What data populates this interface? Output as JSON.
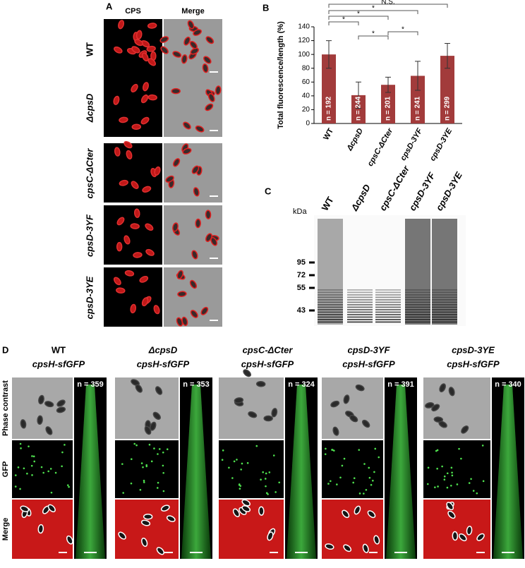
{
  "panel_a": {
    "label": "A",
    "columns": [
      "CPS",
      "Merge"
    ],
    "rows": [
      "WT",
      "ΔcpsD",
      "cpsC-ΔCter",
      "cpsD-3YF",
      "cpsD-3YE"
    ]
  },
  "chart_data": {
    "type": "bar",
    "panel_label": "B",
    "ylabel": "Total fluorescence/length (%)",
    "categories": [
      "WT",
      "ΔcpsD",
      "cpsC-ΔCter",
      "cpsD-3YF",
      "cpsD-3YE"
    ],
    "values": [
      100,
      41,
      56,
      69,
      98
    ],
    "errors": [
      20,
      19,
      11,
      21,
      18
    ],
    "bar_labels": [
      "n = 192",
      "n = 244",
      "n = 201",
      "n = 241",
      "n = 299"
    ],
    "color": "#a23b3b",
    "ylim": [
      0,
      140
    ],
    "yticks": [
      0,
      20,
      40,
      60,
      80,
      100,
      120,
      140
    ],
    "significance": [
      {
        "between": [
          0,
          4
        ],
        "label": "N.S."
      },
      {
        "between": [
          0,
          3
        ],
        "label": "*"
      },
      {
        "between": [
          0,
          2
        ],
        "label": "*"
      },
      {
        "between": [
          0,
          1
        ],
        "label": "*"
      },
      {
        "between": [
          2,
          3
        ],
        "label": "*"
      },
      {
        "between": [
          1,
          2
        ],
        "label": "*"
      }
    ]
  },
  "panel_c": {
    "label": "C",
    "unit": "kDa",
    "lanes": [
      "WT",
      "ΔcpsD",
      "cpsC-ΔCter",
      "cpsD-3YF",
      "cpsD-3YE"
    ],
    "markers": [
      "95",
      "72",
      "55",
      "43"
    ]
  },
  "panel_d": {
    "label": "D",
    "rows": [
      "Phase contrast",
      "GFP",
      "Merge"
    ],
    "columns": [
      {
        "strain": "WT",
        "reporter": "cpsH-sfGFP",
        "n": "n = 359"
      },
      {
        "strain": "ΔcpsD",
        "reporter": "cpsH-sfGFP",
        "n": "n = 353"
      },
      {
        "strain": "cpsC-ΔCter",
        "reporter": "cpsH-sfGFP",
        "n": "n = 324"
      },
      {
        "strain": "cpsD-3YF",
        "reporter": "cpsH-sfGFP",
        "n": "n = 391"
      },
      {
        "strain": "cpsD-3YE",
        "reporter": "cpsH-sfGFP",
        "n": "n = 340"
      }
    ]
  }
}
